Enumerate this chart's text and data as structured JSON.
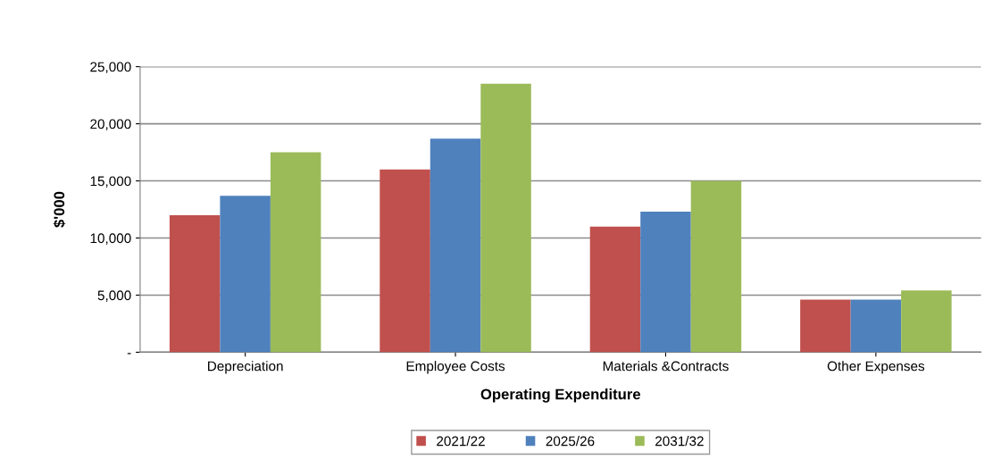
{
  "chart_data": {
    "type": "bar",
    "xlabel": "Operating Expenditure",
    "ylabel": "$'000",
    "categories": [
      "Depreciation",
      "Employee Costs",
      "Materials &Contracts",
      "Other Expenses"
    ],
    "series": [
      {
        "name": "2021/22",
        "color": "#c0504d",
        "values": [
          12000,
          16000,
          11000,
          4600
        ]
      },
      {
        "name": "2025/26",
        "color": "#4f81bd",
        "values": [
          13700,
          18700,
          12300,
          4600
        ]
      },
      {
        "name": "2031/32",
        "color": "#9bbb59",
        "values": [
          17500,
          23500,
          15000,
          5400
        ]
      }
    ],
    "ylim": [
      0,
      25000
    ],
    "yticks": [
      {
        "value": 0,
        "label": "-"
      },
      {
        "value": 5000,
        "label": "5,000"
      },
      {
        "value": 10000,
        "label": "10,000"
      },
      {
        "value": 15000,
        "label": "15,000"
      },
      {
        "value": 20000,
        "label": "20,000"
      },
      {
        "value": 25000,
        "label": "25,000"
      }
    ],
    "grid": "y",
    "legend": "bottom"
  }
}
